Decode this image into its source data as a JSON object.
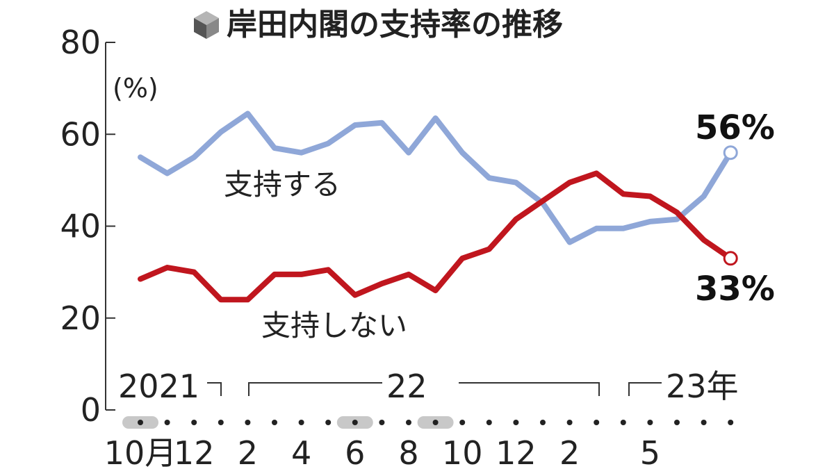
{
  "chart_data": {
    "type": "line",
    "title": "岸田内閣の支持率の推移",
    "unit": "(%)",
    "ylim": [
      0,
      80
    ],
    "yticks": [
      "0",
      "20",
      "40",
      "60",
      "80"
    ],
    "x_tick_labels": [
      "10月",
      "12",
      "2",
      "4",
      "6",
      "8",
      "10",
      "12",
      "2",
      "5"
    ],
    "x_tick_index": [
      0,
      2,
      4,
      6,
      8,
      10,
      12,
      14,
      16,
      19
    ],
    "year_labels": [
      "2021",
      "22",
      "23年"
    ],
    "highlighted_months": [
      0,
      8,
      11
    ],
    "series": [
      {
        "name": "支持する",
        "color": "#8fa7d8",
        "values": [
          55,
          51.5,
          55,
          60.5,
          64.5,
          57,
          56,
          58,
          62,
          62.5,
          56,
          63.5,
          56,
          50.5,
          49.5,
          45,
          36.5,
          39.5,
          39.5,
          41,
          41.5,
          46.5,
          56
        ]
      },
      {
        "name": "支持しない",
        "color": "#c0161e",
        "values": [
          28.5,
          31,
          30,
          24,
          24,
          29.5,
          29.5,
          30.5,
          25,
          27.5,
          29.5,
          26,
          33,
          35,
          41.5,
          45.5,
          49.5,
          51.5,
          47,
          46.5,
          43,
          37,
          33
        ]
      }
    ],
    "end_labels": {
      "support": "56%",
      "oppose": "33%"
    }
  }
}
